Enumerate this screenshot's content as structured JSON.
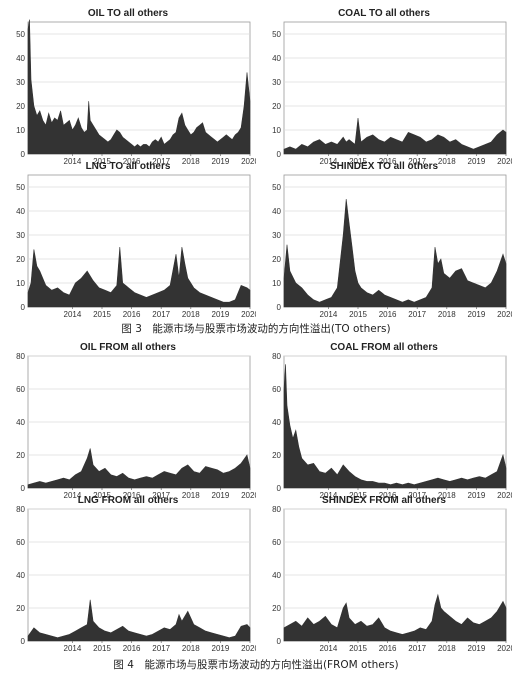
{
  "figure3": {
    "caption": "图 3　能源市场与股票市场波动的方向性溢出(TO  others)"
  },
  "figure4": {
    "caption": "图 4　能源市场与股票市场波动的方向性溢出(FROM others)"
  },
  "chart_data": [
    {
      "id": "oil-to",
      "type": "area",
      "title": "OIL TO all others",
      "xlabel": "",
      "ylabel": "",
      "xlim": [
        2013.0,
        2020.5
      ],
      "ylim": [
        0,
        55
      ],
      "yticks": [
        0,
        10,
        20,
        30,
        40,
        50
      ],
      "xticks": [
        "2014",
        "2015",
        "2016",
        "2017",
        "2018",
        "2019",
        "2020"
      ],
      "grid": true,
      "fill": "#333333",
      "series": [
        {
          "x": [
            2013.0,
            2013.05,
            2013.1,
            2013.2,
            2013.3,
            2013.4,
            2013.5,
            2013.6,
            2013.7,
            2013.8,
            2013.9,
            2014.0,
            2014.1,
            2014.2,
            2014.3,
            2014.4,
            2014.5,
            2014.6,
            2014.7,
            2014.8,
            2014.9,
            2015.0,
            2015.05,
            2015.1,
            2015.2,
            2015.3,
            2015.4,
            2015.5,
            2015.6,
            2015.7,
            2015.8,
            2015.9,
            2016.0,
            2016.1,
            2016.2,
            2016.3,
            2016.4,
            2016.5,
            2016.6,
            2016.7,
            2016.8,
            2016.9,
            2017.0,
            2017.1,
            2017.2,
            2017.3,
            2017.4,
            2017.5,
            2017.6,
            2017.7,
            2017.8,
            2017.9,
            2018.0,
            2018.1,
            2018.2,
            2018.3,
            2018.4,
            2018.5,
            2018.6,
            2018.7,
            2018.8,
            2018.9,
            2019.0,
            2019.1,
            2019.2,
            2019.3,
            2019.4,
            2019.5,
            2019.6,
            2019.7,
            2019.8,
            2019.9,
            2020.0,
            2020.1,
            2020.2,
            2020.3,
            2020.4,
            2020.5
          ],
          "y": [
            52,
            56,
            31,
            20,
            16,
            18,
            14,
            12,
            17,
            13,
            15,
            14,
            18,
            12,
            13,
            14,
            10,
            12,
            15,
            11,
            9,
            10,
            22,
            14,
            12,
            10,
            8,
            7,
            6,
            5,
            6,
            8,
            10,
            9,
            7,
            6,
            5,
            4,
            3,
            4,
            3,
            4,
            4,
            3,
            5,
            6,
            5,
            7,
            4,
            5,
            6,
            8,
            9,
            15,
            17,
            12,
            10,
            8,
            9,
            11,
            12,
            13,
            9,
            8,
            7,
            6,
            5,
            6,
            7,
            8,
            7,
            6,
            8,
            9,
            11,
            20,
            34,
            22
          ]
        }
      ]
    },
    {
      "id": "coal-to",
      "type": "area",
      "title": "COAL TO all others",
      "xlabel": "",
      "ylabel": "",
      "xlim": [
        2013.0,
        2020.5
      ],
      "ylim": [
        0,
        55
      ],
      "yticks": [
        0,
        10,
        20,
        30,
        40,
        50
      ],
      "xticks": [
        "2014",
        "2015",
        "2016",
        "2017",
        "2018",
        "2019",
        "2020"
      ],
      "grid": true,
      "fill": "#333333",
      "series": [
        {
          "x": [
            2013.0,
            2013.2,
            2013.4,
            2013.6,
            2013.8,
            2014.0,
            2014.2,
            2014.4,
            2014.6,
            2014.8,
            2015.0,
            2015.1,
            2015.2,
            2015.4,
            2015.5,
            2015.6,
            2015.8,
            2016.0,
            2016.2,
            2016.4,
            2016.6,
            2016.8,
            2017.0,
            2017.2,
            2017.4,
            2017.6,
            2017.8,
            2018.0,
            2018.2,
            2018.4,
            2018.6,
            2018.8,
            2019.0,
            2019.2,
            2019.4,
            2019.6,
            2019.8,
            2020.0,
            2020.2,
            2020.4,
            2020.5
          ],
          "y": [
            2,
            3,
            2,
            4,
            3,
            5,
            6,
            4,
            5,
            4,
            7,
            5,
            6,
            4,
            15,
            5,
            7,
            8,
            6,
            5,
            7,
            6,
            5,
            9,
            8,
            7,
            5,
            6,
            8,
            7,
            5,
            6,
            4,
            3,
            2,
            3,
            4,
            5,
            8,
            10,
            9
          ]
        }
      ]
    },
    {
      "id": "lng-to",
      "type": "area",
      "title": "LNG TO all others",
      "xlabel": "",
      "ylabel": "",
      "xlim": [
        2013.0,
        2020.5
      ],
      "ylim": [
        0,
        55
      ],
      "yticks": [
        0,
        10,
        20,
        30,
        40,
        50
      ],
      "xticks": [
        "2014",
        "2015",
        "2016",
        "2017",
        "2018",
        "2019",
        "2020"
      ],
      "grid": true,
      "fill": "#333333",
      "series": [
        {
          "x": [
            2013.0,
            2013.1,
            2013.2,
            2013.3,
            2013.4,
            2013.5,
            2013.6,
            2013.8,
            2014.0,
            2014.2,
            2014.4,
            2014.6,
            2014.8,
            2015.0,
            2015.2,
            2015.4,
            2015.6,
            2015.8,
            2016.0,
            2016.1,
            2016.2,
            2016.4,
            2016.6,
            2016.8,
            2017.0,
            2017.2,
            2017.4,
            2017.6,
            2017.8,
            2018.0,
            2018.1,
            2018.2,
            2018.3,
            2018.4,
            2018.6,
            2018.8,
            2019.0,
            2019.2,
            2019.4,
            2019.6,
            2019.8,
            2020.0,
            2020.2,
            2020.4,
            2020.5
          ],
          "y": [
            6,
            10,
            24,
            17,
            15,
            12,
            9,
            7,
            8,
            6,
            5,
            10,
            12,
            15,
            11,
            8,
            7,
            6,
            9,
            25,
            10,
            8,
            6,
            5,
            4,
            5,
            6,
            7,
            9,
            22,
            12,
            25,
            18,
            12,
            8,
            6,
            5,
            4,
            3,
            2,
            2,
            3,
            9,
            8,
            7
          ]
        }
      ]
    },
    {
      "id": "shindex-to",
      "type": "area",
      "title": "SHINDEX TO all others",
      "xlabel": "",
      "ylabel": "",
      "xlim": [
        2013.0,
        2020.5
      ],
      "ylim": [
        0,
        55
      ],
      "yticks": [
        0,
        10,
        20,
        30,
        40,
        50
      ],
      "xticks": [
        "2014",
        "2015",
        "2016",
        "2017",
        "2018",
        "2019",
        "2020"
      ],
      "grid": true,
      "fill": "#333333",
      "series": [
        {
          "x": [
            2013.0,
            2013.1,
            2013.2,
            2013.4,
            2013.6,
            2013.8,
            2014.0,
            2014.2,
            2014.4,
            2014.6,
            2014.8,
            2015.0,
            2015.1,
            2015.2,
            2015.3,
            2015.4,
            2015.5,
            2015.6,
            2015.8,
            2016.0,
            2016.2,
            2016.4,
            2016.6,
            2016.8,
            2017.0,
            2017.2,
            2017.4,
            2017.6,
            2017.8,
            2018.0,
            2018.1,
            2018.2,
            2018.3,
            2018.4,
            2018.6,
            2018.8,
            2019.0,
            2019.2,
            2019.4,
            2019.6,
            2019.8,
            2020.0,
            2020.2,
            2020.4,
            2020.5
          ],
          "y": [
            12,
            26,
            15,
            10,
            8,
            5,
            3,
            2,
            3,
            4,
            8,
            30,
            45,
            35,
            25,
            15,
            10,
            8,
            6,
            5,
            7,
            5,
            4,
            3,
            2,
            3,
            2,
            3,
            4,
            8,
            25,
            18,
            20,
            14,
            12,
            15,
            16,
            11,
            10,
            9,
            8,
            10,
            15,
            22,
            18
          ]
        }
      ]
    },
    {
      "id": "oil-from",
      "type": "area",
      "title": "OIL FROM all others",
      "xlabel": "",
      "ylabel": "",
      "xlim": [
        2013.0,
        2020.5
      ],
      "ylim": [
        0,
        80
      ],
      "yticks": [
        0,
        20,
        40,
        60,
        80
      ],
      "xticks": [
        "2014",
        "2015",
        "2016",
        "2017",
        "2018",
        "2019",
        "2020"
      ],
      "grid": true,
      "fill": "#333333",
      "series": [
        {
          "x": [
            2013.0,
            2013.2,
            2013.4,
            2013.6,
            2013.8,
            2014.0,
            2014.2,
            2014.4,
            2014.6,
            2014.8,
            2015.0,
            2015.1,
            2015.2,
            2015.4,
            2015.6,
            2015.8,
            2016.0,
            2016.2,
            2016.4,
            2016.6,
            2016.8,
            2017.0,
            2017.2,
            2017.4,
            2017.6,
            2017.8,
            2018.0,
            2018.2,
            2018.4,
            2018.6,
            2018.8,
            2019.0,
            2019.2,
            2019.4,
            2019.6,
            2019.8,
            2020.0,
            2020.2,
            2020.4,
            2020.5
          ],
          "y": [
            2,
            3,
            4,
            3,
            4,
            5,
            6,
            5,
            8,
            10,
            18,
            24,
            14,
            10,
            12,
            8,
            7,
            9,
            6,
            5,
            6,
            7,
            6,
            8,
            10,
            9,
            8,
            12,
            14,
            10,
            9,
            13,
            12,
            11,
            9,
            10,
            12,
            15,
            20,
            12
          ]
        }
      ]
    },
    {
      "id": "coal-from",
      "type": "area",
      "title": "COAL FROM all others",
      "xlabel": "",
      "ylabel": "",
      "xlim": [
        2013.0,
        2020.5
      ],
      "ylim": [
        0,
        80
      ],
      "yticks": [
        0,
        20,
        40,
        60,
        80
      ],
      "xticks": [
        "2014",
        "2015",
        "2016",
        "2017",
        "2018",
        "2019",
        "2020"
      ],
      "grid": true,
      "fill": "#333333",
      "series": [
        {
          "x": [
            2013.0,
            2013.05,
            2013.1,
            2013.2,
            2013.3,
            2013.4,
            2013.5,
            2013.6,
            2013.8,
            2014.0,
            2014.2,
            2014.4,
            2014.6,
            2014.8,
            2015.0,
            2015.2,
            2015.4,
            2015.6,
            2015.8,
            2016.0,
            2016.2,
            2016.4,
            2016.6,
            2016.8,
            2017.0,
            2017.2,
            2017.4,
            2017.6,
            2017.8,
            2018.0,
            2018.2,
            2018.4,
            2018.6,
            2018.8,
            2019.0,
            2019.2,
            2019.4,
            2019.6,
            2019.8,
            2020.0,
            2020.2,
            2020.4,
            2020.5
          ],
          "y": [
            60,
            75,
            50,
            38,
            30,
            35,
            25,
            18,
            14,
            15,
            10,
            9,
            12,
            8,
            14,
            10,
            7,
            5,
            4,
            4,
            3,
            3,
            2,
            3,
            2,
            3,
            2,
            3,
            4,
            5,
            6,
            5,
            4,
            5,
            6,
            5,
            6,
            7,
            6,
            8,
            10,
            20,
            12
          ]
        }
      ]
    },
    {
      "id": "lng-from",
      "type": "area",
      "title": "LNG FROM all others",
      "xlabel": "",
      "ylabel": "",
      "xlim": [
        2013.0,
        2020.5
      ],
      "ylim": [
        0,
        80
      ],
      "yticks": [
        0,
        20,
        40,
        60,
        80
      ],
      "xticks": [
        "2014",
        "2015",
        "2016",
        "2017",
        "2018",
        "2019",
        "2020"
      ],
      "grid": true,
      "fill": "#333333",
      "series": [
        {
          "x": [
            2013.0,
            2013.2,
            2013.4,
            2013.6,
            2013.8,
            2014.0,
            2014.2,
            2014.4,
            2014.6,
            2014.8,
            2015.0,
            2015.1,
            2015.2,
            2015.4,
            2015.6,
            2015.8,
            2016.0,
            2016.2,
            2016.4,
            2016.6,
            2016.8,
            2017.0,
            2017.2,
            2017.4,
            2017.6,
            2017.8,
            2018.0,
            2018.1,
            2018.2,
            2018.4,
            2018.6,
            2018.8,
            2019.0,
            2019.2,
            2019.4,
            2019.6,
            2019.8,
            2020.0,
            2020.2,
            2020.4,
            2020.5
          ],
          "y": [
            3,
            8,
            5,
            4,
            3,
            2,
            3,
            4,
            6,
            8,
            10,
            25,
            12,
            8,
            6,
            5,
            7,
            9,
            6,
            5,
            4,
            3,
            4,
            6,
            8,
            7,
            10,
            16,
            12,
            18,
            10,
            8,
            6,
            5,
            4,
            3,
            2,
            3,
            9,
            10,
            8
          ]
        }
      ]
    },
    {
      "id": "shindex-from",
      "type": "area",
      "title": "SHINDEX FROM all others",
      "xlabel": "",
      "ylabel": "",
      "xlim": [
        2013.0,
        2020.5
      ],
      "ylim": [
        0,
        80
      ],
      "yticks": [
        0,
        20,
        40,
        60,
        80
      ],
      "xticks": [
        "2014",
        "2015",
        "2016",
        "2017",
        "2018",
        "2019",
        "2020"
      ],
      "grid": true,
      "fill": "#333333",
      "series": [
        {
          "x": [
            2013.0,
            2013.2,
            2013.4,
            2013.6,
            2013.8,
            2014.0,
            2014.2,
            2014.4,
            2014.6,
            2014.8,
            2015.0,
            2015.1,
            2015.2,
            2015.4,
            2015.6,
            2015.8,
            2016.0,
            2016.2,
            2016.4,
            2016.6,
            2016.8,
            2017.0,
            2017.2,
            2017.4,
            2017.6,
            2017.8,
            2018.0,
            2018.1,
            2018.2,
            2018.3,
            2018.4,
            2018.6,
            2018.8,
            2019.0,
            2019.2,
            2019.4,
            2019.6,
            2019.8,
            2020.0,
            2020.2,
            2020.4,
            2020.5
          ],
          "y": [
            8,
            10,
            12,
            9,
            14,
            10,
            12,
            15,
            10,
            8,
            20,
            23,
            14,
            10,
            12,
            9,
            10,
            14,
            8,
            6,
            5,
            4,
            5,
            6,
            8,
            7,
            12,
            22,
            28,
            20,
            18,
            15,
            12,
            10,
            14,
            11,
            10,
            12,
            14,
            18,
            24,
            20
          ]
        }
      ]
    }
  ]
}
